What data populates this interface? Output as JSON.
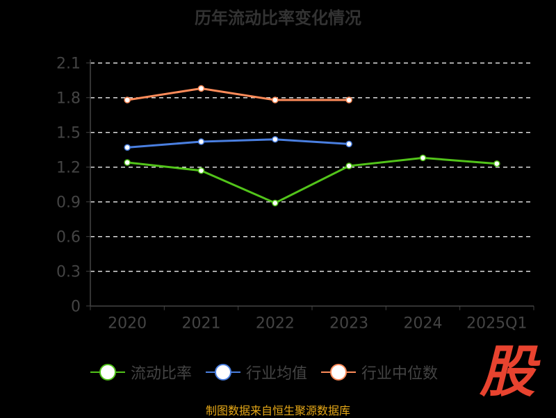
{
  "chart_data": {
    "type": "line",
    "title": "历年流动比率变化情况",
    "categories": [
      "2020",
      "2021",
      "2022",
      "2023",
      "2024",
      "2025Q1"
    ],
    "ylim": [
      0,
      2.1
    ],
    "yticks": [
      "0",
      "0.3",
      "0.6",
      "0.9",
      "1.2",
      "1.5",
      "1.8",
      "2.1"
    ],
    "grid": true,
    "legend_position": "bottom",
    "series": [
      {
        "name": "流动比率",
        "color": "#52c41a",
        "values": [
          1.24,
          1.17,
          0.89,
          1.21,
          1.28,
          1.23
        ]
      },
      {
        "name": "行业均值",
        "color": "#4a7fe0",
        "values": [
          1.37,
          1.42,
          1.44,
          1.4,
          null,
          null
        ]
      },
      {
        "name": "行业中位数",
        "color": "#ff8c5a",
        "values": [
          1.78,
          1.88,
          1.78,
          1.78,
          null,
          null
        ]
      }
    ]
  },
  "source": "制图数据来自恒生聚源数据库",
  "logo_text": "股"
}
